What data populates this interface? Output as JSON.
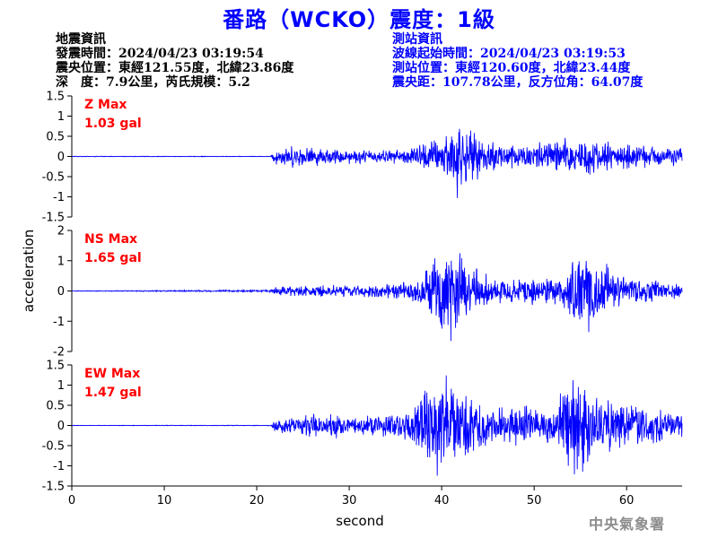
{
  "title": "番路（WCKO）震度：1級",
  "earthquake_info": {
    "heading": "地震資訊",
    "origin_time": "發震時間：2024/04/23 03:19:54",
    "epicenter": "震央位置：東經121.55度，北緯23.86度",
    "depth_magnitude": "深　度：7.9公里，芮氏規模：5.2"
  },
  "station_info": {
    "heading": "測站資訊",
    "wave_start": "波線起始時間：2024/04/23 03:19:53",
    "station_location": "測站位置：東經120.60度，北緯23.44度",
    "distance_azimuth": "震央距：107.78公里，反方位角：64.07度"
  },
  "agency": "中央氣象署",
  "chart_data": {
    "type": "line",
    "xlabel": "second",
    "ylabel": "acceleration",
    "xlim": [
      0,
      66
    ],
    "x_ticks": [
      "0",
      "10",
      "20",
      "30",
      "40",
      "50",
      "60"
    ],
    "line_color": "#0000ff",
    "label_color": "#ff0000",
    "panels": [
      {
        "name": "Z",
        "max_title": "Z Max",
        "max_value": "1.03 gal",
        "peak": 1.03,
        "ylim": [
          -1.5,
          1.5
        ],
        "y_ticks": [
          "1.5",
          "1",
          "0.5",
          "0",
          "-0.5",
          "-1",
          "-1.5"
        ],
        "envelope": [
          [
            0,
            0.008
          ],
          [
            21.5,
            0.008
          ],
          [
            22,
            0.25
          ],
          [
            24,
            0.3
          ],
          [
            28,
            0.22
          ],
          [
            33,
            0.18
          ],
          [
            36,
            0.2
          ],
          [
            38,
            0.4
          ],
          [
            40,
            0.55
          ],
          [
            41.7,
            1.03
          ],
          [
            43,
            0.7
          ],
          [
            45,
            0.45
          ],
          [
            47,
            0.4
          ],
          [
            49,
            0.35
          ],
          [
            51,
            0.45
          ],
          [
            53,
            0.5
          ],
          [
            55,
            0.55
          ],
          [
            57,
            0.45
          ],
          [
            60,
            0.35
          ],
          [
            63,
            0.3
          ],
          [
            66,
            0.25
          ]
        ]
      },
      {
        "name": "NS",
        "max_title": "NS Max",
        "max_value": "1.65 gal",
        "peak": 1.65,
        "ylim": [
          -2,
          2
        ],
        "y_ticks": [
          "2",
          "1",
          "0",
          "-1",
          "-2"
        ],
        "envelope": [
          [
            0,
            0.01
          ],
          [
            15,
            0.03
          ],
          [
            21.5,
            0.04
          ],
          [
            22,
            0.18
          ],
          [
            26,
            0.22
          ],
          [
            30,
            0.2
          ],
          [
            34,
            0.25
          ],
          [
            36,
            0.35
          ],
          [
            38,
            0.7
          ],
          [
            39.5,
            1.4
          ],
          [
            41,
            1.65
          ],
          [
            42.5,
            1.2
          ],
          [
            44,
            0.8
          ],
          [
            46,
            0.5
          ],
          [
            48,
            0.45
          ],
          [
            50,
            0.5
          ],
          [
            52,
            0.45
          ],
          [
            53,
            0.6
          ],
          [
            54.5,
            1.3
          ],
          [
            56,
            1.5
          ],
          [
            57.5,
            1.1
          ],
          [
            59,
            0.6
          ],
          [
            61,
            0.45
          ],
          [
            64,
            0.35
          ],
          [
            66,
            0.3
          ]
        ]
      },
      {
        "name": "EW",
        "max_title": "EW Max",
        "max_value": "1.47 gal",
        "peak": 1.47,
        "ylim": [
          -1.5,
          1.5
        ],
        "y_ticks": [
          "1.5",
          "1",
          "0.5",
          "0",
          "-0.5",
          "-1",
          "-1.5"
        ],
        "envelope": [
          [
            0,
            0.005
          ],
          [
            21.5,
            0.01
          ],
          [
            22,
            0.2
          ],
          [
            25,
            0.3
          ],
          [
            28,
            0.35
          ],
          [
            31,
            0.25
          ],
          [
            34,
            0.3
          ],
          [
            36,
            0.45
          ],
          [
            38,
            0.9
          ],
          [
            40,
            1.47
          ],
          [
            42,
            1.0
          ],
          [
            44,
            0.6
          ],
          [
            45,
            0.55
          ],
          [
            47,
            0.5
          ],
          [
            49,
            0.6
          ],
          [
            51,
            0.5
          ],
          [
            52.5,
            0.7
          ],
          [
            54.5,
            1.4
          ],
          [
            56,
            1.1
          ],
          [
            58,
            0.8
          ],
          [
            60,
            0.6
          ],
          [
            62,
            0.5
          ],
          [
            64,
            0.45
          ],
          [
            66,
            0.4
          ]
        ]
      }
    ]
  }
}
